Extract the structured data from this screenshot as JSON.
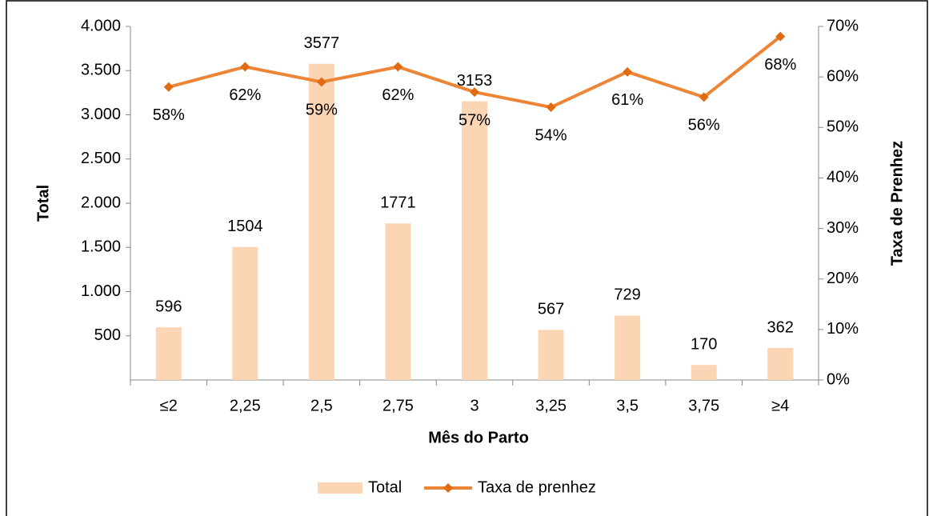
{
  "chart_data": {
    "type": "bar",
    "x_label": "Mês do Parto",
    "y_label": "Total",
    "y2_label": "Taxa de Prenhez",
    "categories": [
      "≤2",
      "2,25",
      "2,5",
      "2,75",
      "3",
      "3,25",
      "3,5",
      "3,75",
      "≥4"
    ],
    "series": [
      {
        "name": "Total",
        "type": "bar",
        "color": "#fcd5b4",
        "values": [
          596,
          1504,
          3577,
          1771,
          3153,
          567,
          729,
          170,
          362
        ]
      },
      {
        "name": "Taxa de prenhez",
        "type": "line",
        "axis": "y2",
        "color": "#ed8536",
        "values": [
          58,
          62,
          59,
          62,
          57,
          54,
          61,
          56,
          68
        ],
        "value_labels": [
          "58%",
          "62%",
          "59%",
          "62%",
          "57%",
          "54%",
          "61%",
          "56%",
          "68%"
        ]
      }
    ],
    "ylim": [
      0,
      4000
    ],
    "yticks": [
      500,
      {
        "value": 1000,
        "label": "1.000"
      },
      {
        "value": 1500,
        "label": "1.500"
      },
      {
        "value": 2000,
        "label": "2.000"
      },
      {
        "value": 2500,
        "label": "2.500"
      },
      {
        "value": 3000,
        "label": "3.000"
      },
      {
        "value": 3500,
        "label": "3.500"
      },
      {
        "value": 4000,
        "label": "4.000"
      }
    ],
    "y2lim": [
      0,
      70
    ],
    "y2ticks": [
      {
        "value": 0,
        "label": "0%"
      },
      {
        "value": 10,
        "label": "10%"
      },
      {
        "value": 20,
        "label": "20%"
      },
      {
        "value": 30,
        "label": "30%"
      },
      {
        "value": 40,
        "label": "40%"
      },
      {
        "value": 50,
        "label": "50%"
      },
      {
        "value": 60,
        "label": "60%"
      },
      {
        "value": 70,
        "label": "70%"
      }
    ],
    "legend": "bottom"
  }
}
